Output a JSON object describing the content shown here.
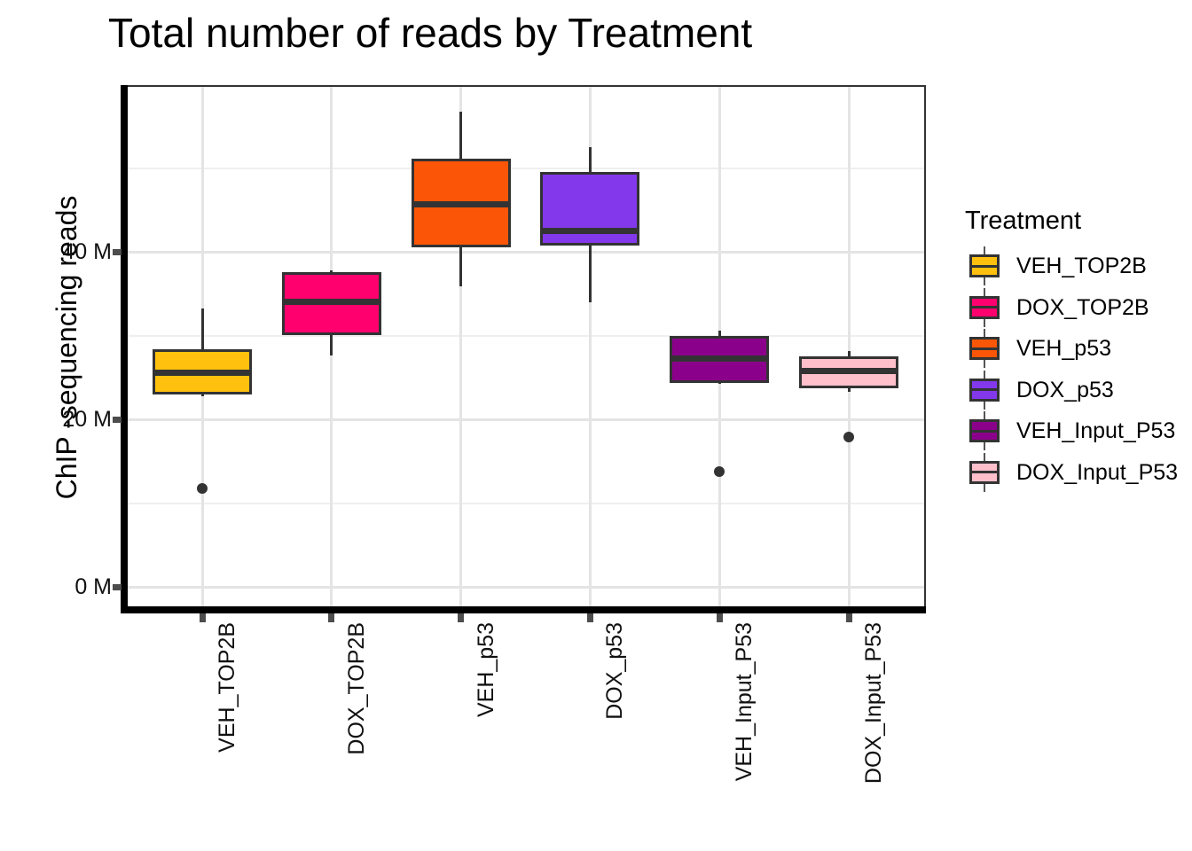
{
  "chart_data": {
    "type": "boxplot",
    "title": "Total number of reads by Treatment",
    "xlabel": "",
    "ylabel": "ChIP -sequencing reads",
    "value_unit": "M (millions of reads)",
    "categories": [
      "VEH_TOP2B",
      "DOX_TOP2B",
      "VEH_p53",
      "DOX_p53",
      "VEH_Input_P53",
      "DOX_Input_P53"
    ],
    "y_axis": {
      "tick_values": [
        0,
        20,
        40
      ],
      "tick_labels": [
        "0 M",
        "20 M",
        "40 M"
      ],
      "minor_gridline_values": [
        10,
        30,
        50
      ],
      "range_min": -2.7,
      "range_max": 59.9,
      "grid": "on"
    },
    "series": [
      {
        "name": "VEH_TOP2B",
        "color": "#FFC10E",
        "whisker_low": 22.7,
        "q1": 23.0,
        "median": 25.6,
        "q3": 28.4,
        "whisker_high": 33.2,
        "outliers": [
          11.7
        ]
      },
      {
        "name": "DOX_TOP2B",
        "color": "#FF006E",
        "whisker_low": 27.6,
        "q1": 30.0,
        "median": 34.0,
        "q3": 37.6,
        "whisker_high": 37.8,
        "outliers": []
      },
      {
        "name": "VEH_p53",
        "color": "#FB5607",
        "whisker_low": 35.9,
        "q1": 40.5,
        "median": 45.7,
        "q3": 51.1,
        "whisker_high": 56.7,
        "outliers": []
      },
      {
        "name": "DOX_p53",
        "color": "#8338EC",
        "whisker_low": 34.0,
        "q1": 40.7,
        "median": 42.5,
        "q3": 49.5,
        "whisker_high": 52.5,
        "outliers": []
      },
      {
        "name": "VEH_Input_P53",
        "color": "#8B008B",
        "whisker_low": 24.2,
        "q1": 24.3,
        "median": 27.3,
        "q3": 29.9,
        "whisker_high": 30.6,
        "outliers": [
          13.8
        ]
      },
      {
        "name": "DOX_Input_P53",
        "color": "#FFC0CB",
        "whisker_low": 23.3,
        "q1": 23.7,
        "median": 25.8,
        "q3": 27.5,
        "whisker_high": 28.1,
        "outliers": [
          17.9
        ]
      }
    ],
    "legend": {
      "title": "Treatment",
      "position": "right"
    },
    "style": {
      "box_border_color": "#333333",
      "median_color": "#333333",
      "whisker_color": "#333333",
      "outlier_color": "#333333",
      "axis_line_color": "#000000",
      "panel_border_color": "#333333",
      "tick_color": "#4d4d4d",
      "gridline_major_color": "#e4e4e4",
      "gridline_minor_color": "#efefef",
      "panel_background": "#ffffff"
    }
  }
}
